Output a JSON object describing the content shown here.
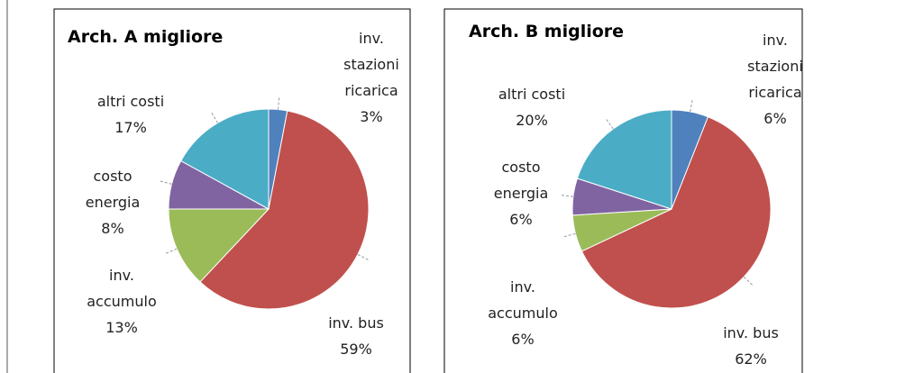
{
  "chart_data": [
    {
      "type": "pie",
      "title": "Arch. A migliore",
      "categories": [
        "inv. stazioni ricarica",
        "inv. bus",
        "inv. accumulo",
        "costo energia",
        "altri costi"
      ],
      "values": [
        3,
        59,
        13,
        8,
        17
      ],
      "value_labels": [
        "3%",
        "59%",
        "13%",
        "8%",
        "17%"
      ],
      "colors": [
        "#4f81bd",
        "#c0504d",
        "#9bbb59",
        "#8064a2",
        "#4bacc6"
      ]
    },
    {
      "type": "pie",
      "title": "Arch. B migliore",
      "categories": [
        "inv. stazioni ricarica",
        "inv. bus",
        "inv. accumulo",
        "costo energia",
        "altri costi"
      ],
      "values": [
        6,
        62,
        6,
        6,
        20
      ],
      "value_labels": [
        "6%",
        "62%",
        "6%",
        "6%",
        "20%"
      ],
      "colors": [
        "#4f81bd",
        "#c0504d",
        "#9bbb59",
        "#8064a2",
        "#4bacc6"
      ]
    }
  ]
}
